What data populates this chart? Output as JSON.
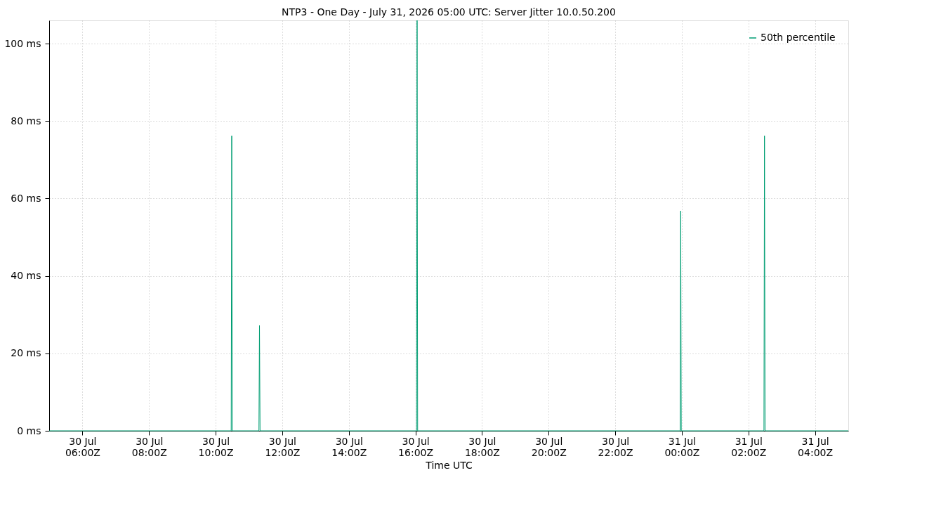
{
  "chart_data": {
    "type": "line",
    "title": "NTP3 - One Day - July 31, 2026 05:00 UTC: Server Jitter 10.0.50.200",
    "xlabel": "Time UTC",
    "x": [
      "2026-07-30T05:00",
      "2026-07-30T10:28",
      "2026-07-30T10:29",
      "2026-07-30T10:30",
      "2026-07-30T11:18",
      "2026-07-30T11:19",
      "2026-07-30T11:20",
      "2026-07-30T16:02",
      "2026-07-30T16:03",
      "2026-07-30T16:04",
      "2026-07-30T23:57",
      "2026-07-30T23:58",
      "2026-07-30T23:59",
      "2026-07-31T02:28",
      "2026-07-31T02:29",
      "2026-07-31T02:30",
      "2026-07-31T05:00"
    ],
    "series": [
      {
        "name": "50th percentile",
        "color": "#009e73",
        "values": [
          0,
          0,
          76.2,
          0,
          0,
          27.2,
          0,
          0,
          106,
          0,
          0,
          56.8,
          0,
          0,
          76.2,
          0,
          0
        ]
      }
    ],
    "xlim": [
      "2026-07-30T05:00",
      "2026-07-31T05:00"
    ],
    "xticks": [
      {
        "value": "2026-07-30T06:00",
        "label": "30 Jul\n06:00Z"
      },
      {
        "value": "2026-07-30T08:00",
        "label": "30 Jul\n08:00Z"
      },
      {
        "value": "2026-07-30T10:00",
        "label": "30 Jul\n10:00Z"
      },
      {
        "value": "2026-07-30T12:00",
        "label": "30 Jul\n12:00Z"
      },
      {
        "value": "2026-07-30T14:00",
        "label": "30 Jul\n14:00Z"
      },
      {
        "value": "2026-07-30T16:00",
        "label": "30 Jul\n16:00Z"
      },
      {
        "value": "2026-07-30T18:00",
        "label": "30 Jul\n18:00Z"
      },
      {
        "value": "2026-07-30T20:00",
        "label": "30 Jul\n20:00Z"
      },
      {
        "value": "2026-07-30T22:00",
        "label": "30 Jul\n22:00Z"
      },
      {
        "value": "2026-07-31T00:00",
        "label": "31 Jul\n00:00Z"
      },
      {
        "value": "2026-07-31T02:00",
        "label": "31 Jul\n02:00Z"
      },
      {
        "value": "2026-07-31T04:00",
        "label": "31 Jul\n04:00Z"
      }
    ],
    "ylim": [
      0,
      106
    ],
    "yticks": [
      {
        "value": 0,
        "label": "0 ms"
      },
      {
        "value": 20,
        "label": "20 ms"
      },
      {
        "value": 40,
        "label": "40 ms"
      },
      {
        "value": 60,
        "label": "60 ms"
      },
      {
        "value": 80,
        "label": "80 ms"
      },
      {
        "value": 100,
        "label": "100 ms"
      }
    ],
    "grid": true,
    "legend": "top right",
    "marker": "none",
    "line_style": "solid"
  }
}
